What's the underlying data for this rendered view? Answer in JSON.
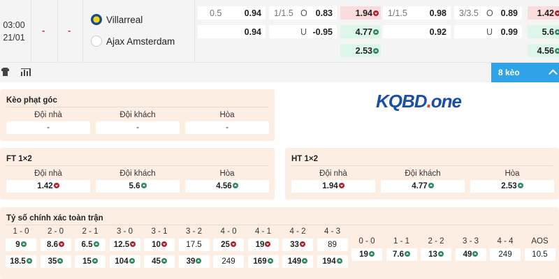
{
  "match": {
    "time": "03:00",
    "date": "21/01",
    "score_ht": "-",
    "score_ft": "-",
    "home": "Villarreal",
    "away": "Ajax Amsterdam"
  },
  "odds": {
    "g1": [
      {
        "h": "0.5",
        "v": "0.94"
      },
      {
        "h": "",
        "v": "0.94"
      }
    ],
    "g2": [
      {
        "h": "1/1.5",
        "ou": "O",
        "v": "0.83"
      },
      {
        "h": "",
        "ou": "U",
        "v": "-0.95"
      }
    ],
    "g3": [
      {
        "v": "1.94",
        "c": "red",
        "a": "down"
      },
      {
        "v": "4.77",
        "c": "green",
        "a": "up"
      },
      {
        "v": "2.53",
        "c": "green",
        "a": "up"
      }
    ],
    "g4": [
      {
        "h": "1/1.5",
        "v": "0.98"
      },
      {
        "h": "",
        "v": "0.92"
      }
    ],
    "g5": [
      {
        "h": "3/3.5",
        "ou": "O",
        "v": "0.89"
      },
      {
        "h": "",
        "ou": "U",
        "v": "0.99"
      }
    ],
    "g6": [
      {
        "v": "1.42",
        "c": "red",
        "a": "down"
      },
      {
        "v": "5.6",
        "c": "green",
        "a": "up"
      },
      {
        "v": "4.56",
        "c": "green",
        "a": "up"
      }
    ]
  },
  "more_button": "8 kèo",
  "logo_text": "KQBD.one",
  "colors": {
    "accent": "#2ea3e8",
    "panel": "#fdeee4",
    "down": "#fbdcdc",
    "up": "#dcf6ea"
  },
  "corner": {
    "title": "Kèo phạt góc",
    "cols": [
      {
        "l": "Đội nhà",
        "v": "-"
      },
      {
        "l": "Đội khách",
        "v": "-"
      },
      {
        "l": "Hòa",
        "v": "-"
      }
    ]
  },
  "ft": {
    "title": "FT 1×2",
    "cols": [
      {
        "l": "Đội nhà",
        "v": "1.42",
        "c": "red",
        "a": "down"
      },
      {
        "l": "Đội khách",
        "v": "5.6",
        "c": "green",
        "a": "up"
      },
      {
        "l": "Hòa",
        "v": "4.56",
        "c": "green",
        "a": "up"
      }
    ]
  },
  "ht": {
    "title": "HT 1×2",
    "cols": [
      {
        "l": "Đội nhà",
        "v": "1.94",
        "c": "red",
        "a": "down"
      },
      {
        "l": "Đội khách",
        "v": "4.77",
        "c": "green",
        "a": "up"
      },
      {
        "l": "Hòa",
        "v": "2.53",
        "c": "green",
        "a": "up"
      }
    ]
  },
  "correct_score": {
    "title": "Tỷ số chính xác toàn trận",
    "home": [
      {
        "l": "1 - 0",
        "r1": {
          "v": "9",
          "c": "green",
          "a": "up"
        },
        "r2": {
          "v": "18.5",
          "c": "green",
          "a": "up"
        }
      },
      {
        "l": "2 - 0",
        "r1": {
          "v": "8.6",
          "c": "red",
          "a": "down"
        },
        "r2": {
          "v": "35",
          "c": "green",
          "a": "up"
        }
      },
      {
        "l": "2 - 1",
        "r1": {
          "v": "6.5",
          "c": "green",
          "a": "up"
        },
        "r2": {
          "v": "15",
          "c": "green",
          "a": "up"
        }
      },
      {
        "l": "3 - 0",
        "r1": {
          "v": "12.5",
          "c": "red",
          "a": "down"
        },
        "r2": {
          "v": "104",
          "c": "green",
          "a": "up"
        }
      },
      {
        "l": "3 - 1",
        "r1": {
          "v": "10",
          "c": "red",
          "a": "down"
        },
        "r2": {
          "v": "45",
          "c": "green",
          "a": "up"
        }
      },
      {
        "l": "3 - 2",
        "r1": {
          "v": "17.5"
        },
        "r2": {
          "v": "39",
          "c": "green",
          "a": "up"
        }
      },
      {
        "l": "4 - 0",
        "r1": {
          "v": "25",
          "c": "red",
          "a": "down"
        },
        "r2": {
          "v": "249"
        }
      },
      {
        "l": "4 - 1",
        "r1": {
          "v": "19",
          "c": "red",
          "a": "down"
        },
        "r2": {
          "v": "169",
          "c": "green",
          "a": "up"
        }
      },
      {
        "l": "4 - 2",
        "r1": {
          "v": "33",
          "c": "red",
          "a": "down"
        },
        "r2": {
          "v": "149",
          "c": "green",
          "a": "up"
        }
      },
      {
        "l": "4 - 3",
        "r1": {
          "v": "89"
        },
        "r2": {
          "v": "194",
          "c": "green",
          "a": "up"
        }
      }
    ],
    "draw": [
      {
        "l": "0 - 0",
        "r1": {
          "v": "19",
          "c": "green",
          "a": "up"
        }
      },
      {
        "l": "1 - 1",
        "r1": {
          "v": "7.6",
          "c": "green",
          "a": "up"
        }
      },
      {
        "l": "2 - 2",
        "r1": {
          "v": "13",
          "c": "green",
          "a": "up"
        }
      },
      {
        "l": "3 - 3",
        "r1": {
          "v": "49",
          "c": "green",
          "a": "up"
        }
      },
      {
        "l": "4 - 4",
        "r1": {
          "v": "249"
        }
      },
      {
        "l": "AOS",
        "r1": {
          "v": "10.5"
        }
      }
    ]
  }
}
